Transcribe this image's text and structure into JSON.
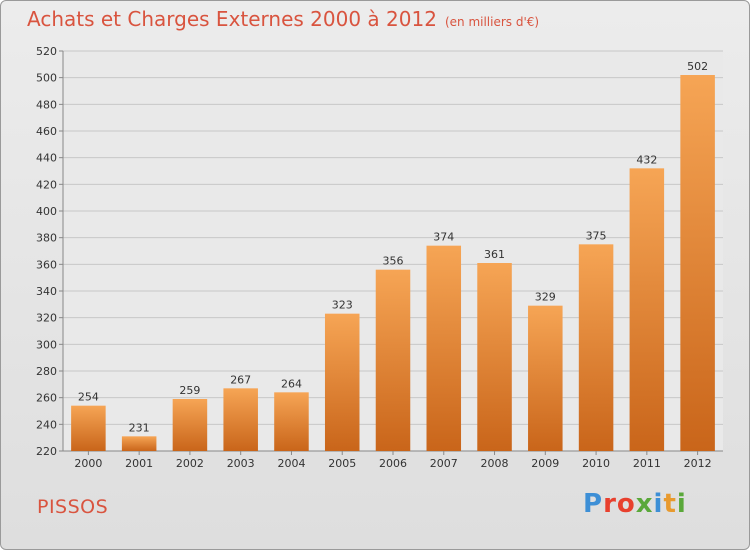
{
  "header": {
    "title": "Achats et Charges Externes 2000 à 2012",
    "subtitle": "(en milliers d'€)"
  },
  "footer": {
    "town": "PISSOS",
    "brand": "Proxiti",
    "brand_colors": [
      "#3d8fd6",
      "#e8402e",
      "#e8402e",
      "#5aa83a",
      "#3d8fd6",
      "#e89a2e",
      "#5aa83a"
    ]
  },
  "colors": {
    "title": "#d9543f",
    "bar_light": "#f6a555",
    "bar_dark": "#c9651a",
    "grid": "#c8c8c8",
    "plot_bg": "#e9e9e9"
  },
  "chart_data": {
    "type": "bar",
    "categories": [
      "2000",
      "2001",
      "2002",
      "2003",
      "2004",
      "2005",
      "2006",
      "2007",
      "2008",
      "2009",
      "2010",
      "2011",
      "2012"
    ],
    "values": [
      254,
      231,
      259,
      267,
      264,
      323,
      356,
      374,
      361,
      329,
      375,
      432,
      502
    ],
    "ylim": [
      220,
      520
    ],
    "yticks": [
      220,
      240,
      260,
      280,
      300,
      320,
      340,
      360,
      380,
      400,
      420,
      440,
      460,
      480,
      500,
      520
    ],
    "grid": true,
    "legend": "none"
  }
}
